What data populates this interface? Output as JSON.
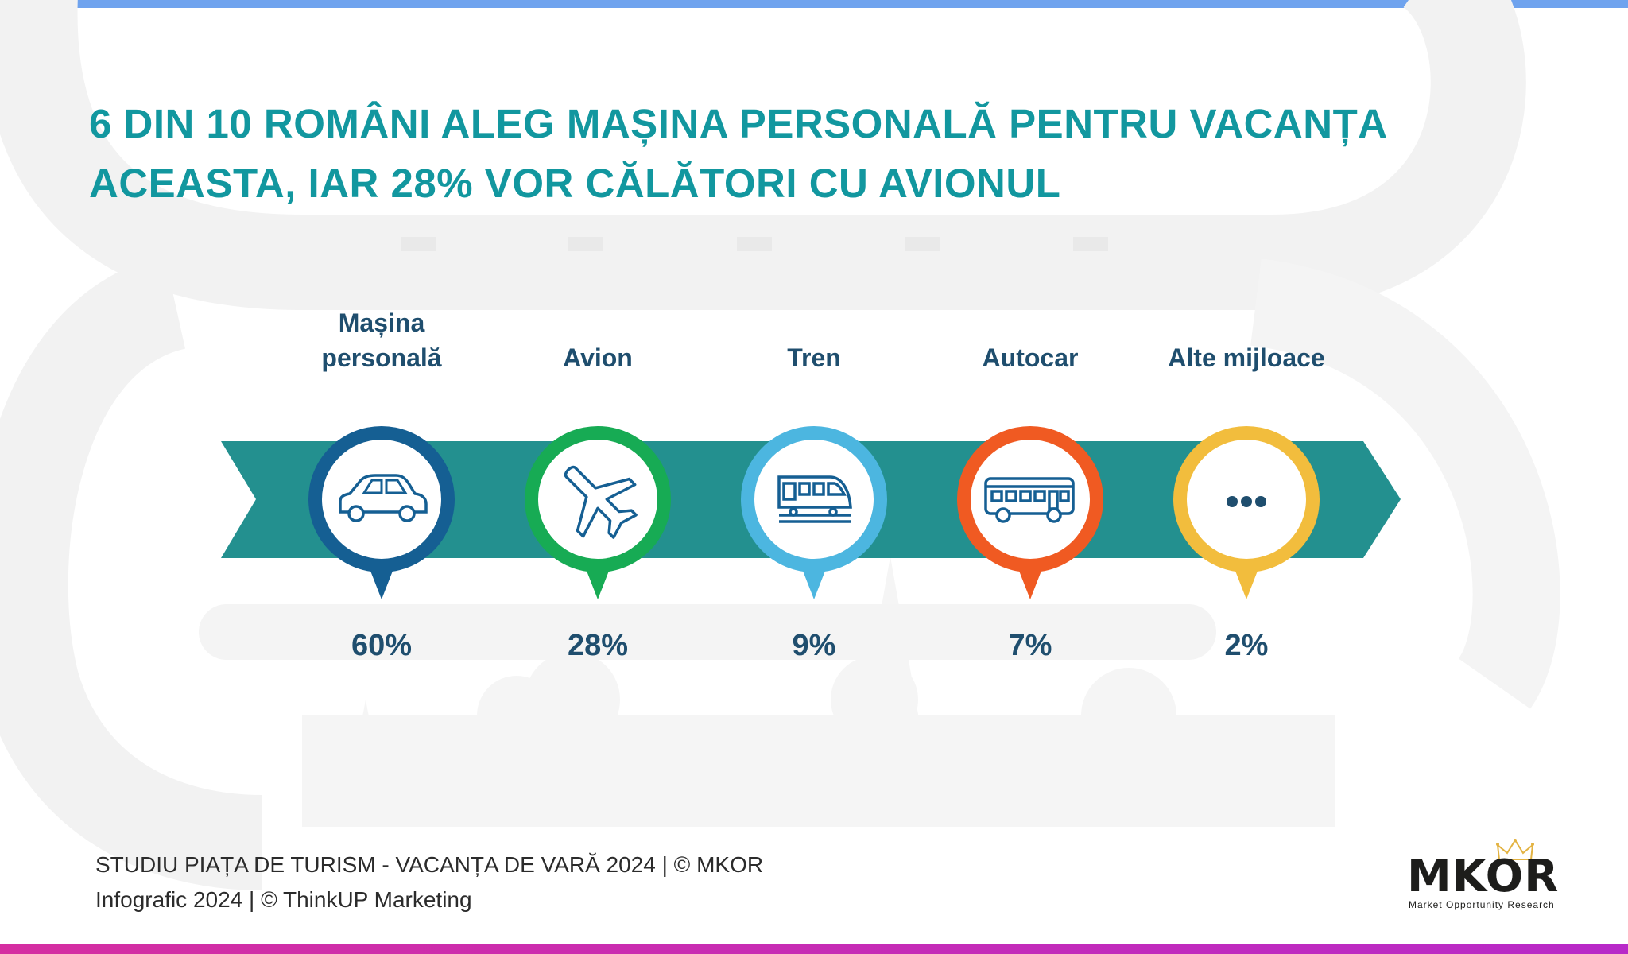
{
  "title": {
    "line1": "6 DIN 10 ROMÂNI ALEG MAȘINA PERSONALĂ PENTRU VACANȚA",
    "line2": "ACEASTA, IAR 28% VOR CĂLĂTORI CU AVIONUL"
  },
  "colors": {
    "title": "#12979f",
    "arrow": "#23908f",
    "label": "#1f4e6e",
    "top_bar": "#6fa3ee",
    "bottom_bar": "#c62db5"
  },
  "chart_data": {
    "type": "bar",
    "categories": [
      "Mașina personală",
      "Avion",
      "Tren",
      "Autocar",
      "Alte mijloace"
    ],
    "category_lines": [
      [
        "Mașina",
        "personală"
      ],
      [
        "Avion"
      ],
      [
        "Tren"
      ],
      [
        "Autocar"
      ],
      [
        "Alte mijloace"
      ]
    ],
    "values": [
      60,
      28,
      9,
      7,
      2
    ],
    "value_labels": [
      "60%",
      "28%",
      "9%",
      "7%",
      "2%"
    ],
    "marker_colors": [
      "#155f93",
      "#17ab54",
      "#4cb6e0",
      "#f05a22",
      "#f2bd3d"
    ],
    "icons": [
      "car-icon",
      "airplane-icon",
      "train-icon",
      "bus-icon",
      "more-dots-icon"
    ],
    "unit": "%"
  },
  "footer": {
    "line1": "STUDIU PIAȚA DE TURISM - VACANȚA DE VARĂ 2024 | © MKOR",
    "line2": "Infografic 2024 | © ThinkUP Marketing"
  },
  "logo": {
    "name": "MKOR",
    "tagline": "Market Opportunity Research"
  }
}
